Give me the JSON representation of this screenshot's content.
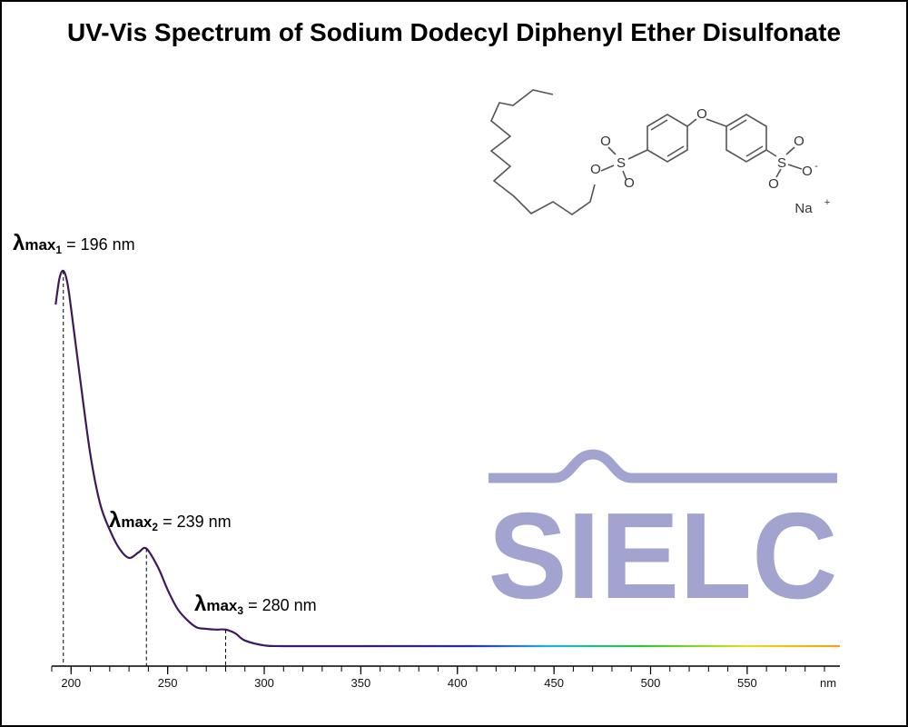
{
  "chart_data": {
    "type": "line",
    "title": "UV-Vis Spectrum of Sodium Dodecyl Diphenyl Ether Disulfonate",
    "x_label": "nm",
    "x": [
      192,
      194,
      196,
      198,
      200,
      205,
      210,
      215,
      220,
      225,
      230,
      235,
      239,
      245,
      250,
      255,
      260,
      265,
      270,
      275,
      280,
      285,
      290,
      300,
      310,
      350,
      400,
      450,
      500,
      550,
      598
    ],
    "series": [
      {
        "name": "Sodium Dodecyl Diphenyl Ether Disulfonate",
        "color": "#3b1a5a",
        "values": [
          0.91,
          0.98,
          1.0,
          0.97,
          0.9,
          0.7,
          0.51,
          0.38,
          0.31,
          0.26,
          0.235,
          0.25,
          0.26,
          0.21,
          0.15,
          0.1,
          0.07,
          0.05,
          0.046,
          0.044,
          0.044,
          0.034,
          0.015,
          0.002,
          0,
          0,
          0,
          0,
          0,
          0,
          0
        ]
      }
    ],
    "xlim": [
      190,
      598
    ],
    "xticks": [
      200,
      250,
      300,
      350,
      400,
      450,
      500,
      550
    ],
    "xminor": [
      190,
      200,
      210,
      220,
      230,
      240,
      250,
      260,
      270,
      280,
      290,
      300,
      310,
      320,
      330,
      340,
      350,
      360,
      370,
      380,
      390,
      400,
      410,
      420,
      430,
      440,
      450,
      460,
      470,
      480,
      490,
      500,
      510,
      520,
      530,
      540,
      550,
      560,
      570,
      580,
      590
    ],
    "annotations": [
      {
        "symbol": "λ",
        "sub_label": "max",
        "index": "1",
        "text": " = 196 nm",
        "x": 196,
        "y": 1.0
      },
      {
        "symbol": "λ",
        "sub_label": "max",
        "index": "2",
        "text": " = 239 nm",
        "x": 239,
        "y": 0.26
      },
      {
        "symbol": "λ",
        "sub_label": "max",
        "index": "3",
        "text": " = 280 nm",
        "x": 280,
        "y": 0.044
      }
    ],
    "logo": "SIELC",
    "structure": {
      "atoms": [
        "O",
        "S",
        "O",
        "O",
        "O",
        "S",
        "O",
        "O",
        "O",
        "-",
        "Na",
        "+"
      ]
    }
  }
}
